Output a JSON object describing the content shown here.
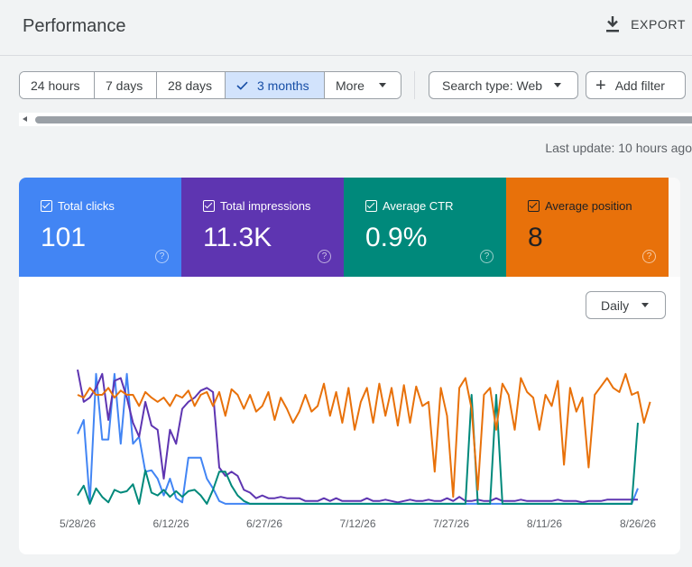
{
  "header": {
    "title": "Performance",
    "export_label": "EXPORT"
  },
  "filters": {
    "date_ranges": [
      {
        "label": "24 hours",
        "selected": false
      },
      {
        "label": "7 days",
        "selected": false
      },
      {
        "label": "28 days",
        "selected": false
      },
      {
        "label": "3 months",
        "selected": true
      },
      {
        "label": "More",
        "selected": false
      }
    ],
    "search_type_label": "Search type: Web",
    "add_filter_label": "Add filter"
  },
  "last_update": "Last update: 10 hours ago",
  "metrics": [
    {
      "label": "Total clicks",
      "value": "101",
      "color": "#4285f4"
    },
    {
      "label": "Total impressions",
      "value": "11.3K",
      "color": "#5e35b1"
    },
    {
      "label": "Average CTR",
      "value": "0.9%",
      "color": "#00897b"
    },
    {
      "label": "Average position",
      "value": "8",
      "color": "#e8710a"
    }
  ],
  "granularity": "Daily",
  "chart_data": {
    "type": "line",
    "x_labels": [
      "5/28/26",
      "6/12/26",
      "6/27/26",
      "7/12/26",
      "7/27/26",
      "8/11/26",
      "8/26/26"
    ],
    "x_start_label_index": 0,
    "points_per_label": 15,
    "series": [
      {
        "name": "Total clicks",
        "color": "#4285f4",
        "values": [
          0.52,
          0.62,
          0.03,
          0.95,
          0.48,
          0.48,
          0.95,
          0.45,
          0.95,
          0.45,
          0.5,
          0.25,
          0.26,
          0.2,
          0.08,
          0.2,
          0.06,
          0.03,
          0.35,
          0.35,
          0.35,
          0.2,
          0.13,
          0.04,
          0.02,
          0.02,
          0.02,
          0.02,
          0.02,
          0.02,
          0.02,
          0.02,
          0.02,
          0.02,
          0.02,
          0.02,
          0.02,
          0.02,
          0.02,
          0.02,
          0.02,
          0.02,
          0.02,
          0.02,
          0.02,
          0.02,
          0.02,
          0.02,
          0.02,
          0.02,
          0.02,
          0.02,
          0.02,
          0.02,
          0.02,
          0.02,
          0.02,
          0.02,
          0.02,
          0.02,
          0.02,
          0.02,
          0.02,
          0.02,
          0.02,
          0.02,
          0.02,
          0.02,
          0.02,
          0.02,
          0.02,
          0.02,
          0.02,
          0.02,
          0.02,
          0.02,
          0.02,
          0.02,
          0.02,
          0.02,
          0.02,
          0.02,
          0.02,
          0.02,
          0.02,
          0.02,
          0.02,
          0.02,
          0.02,
          0.02,
          0.02,
          0.13
        ]
      },
      {
        "name": "Total impressions",
        "color": "#5e35b1",
        "values": [
          0.98,
          0.75,
          0.78,
          0.85,
          0.95,
          0.62,
          0.9,
          0.92,
          0.78,
          0.6,
          0.5,
          0.75,
          0.58,
          0.55,
          0.2,
          0.55,
          0.45,
          0.7,
          0.75,
          0.78,
          0.83,
          0.85,
          0.82,
          0.28,
          0.22,
          0.25,
          0.22,
          0.12,
          0.1,
          0.06,
          0.08,
          0.06,
          0.06,
          0.07,
          0.06,
          0.06,
          0.06,
          0.04,
          0.04,
          0.04,
          0.06,
          0.04,
          0.06,
          0.04,
          0.04,
          0.04,
          0.04,
          0.06,
          0.04,
          0.04,
          0.05,
          0.04,
          0.03,
          0.04,
          0.05,
          0.04,
          0.04,
          0.05,
          0.04,
          0.04,
          0.06,
          0.04,
          0.07,
          0.04,
          0.04,
          0.05,
          0.04,
          0.04,
          0.06,
          0.04,
          0.04,
          0.04,
          0.05,
          0.04,
          0.04,
          0.04,
          0.04,
          0.04,
          0.05,
          0.04,
          0.04,
          0.04,
          0.03,
          0.04,
          0.04,
          0.04,
          0.05,
          0.05,
          0.05,
          0.05,
          0.05,
          0.05
        ]
      },
      {
        "name": "Average CTR",
        "color": "#00897b",
        "values": [
          0.08,
          0.15,
          0.02,
          0.13,
          0.07,
          0.03,
          0.12,
          0.1,
          0.11,
          0.16,
          0.02,
          0.26,
          0.1,
          0.08,
          0.12,
          0.07,
          0.11,
          0.07,
          0.11,
          0.12,
          0.08,
          0.02,
          0.12,
          0.25,
          0.25,
          0.15,
          0.08,
          0.04,
          0.02,
          0.02,
          0.02,
          0.02,
          0.02,
          0.02,
          0.02,
          0.02,
          0.02,
          0.02,
          0.02,
          0.02,
          0.02,
          0.02,
          0.02,
          0.02,
          0.02,
          0.02,
          0.02,
          0.02,
          0.02,
          0.02,
          0.02,
          0.02,
          0.02,
          0.02,
          0.02,
          0.02,
          0.02,
          0.02,
          0.02,
          0.02,
          0.02,
          0.02,
          0.02,
          0.02,
          0.8,
          0.02,
          0.02,
          0.02,
          0.8,
          0.02,
          0.02,
          0.02,
          0.02,
          0.02,
          0.02,
          0.02,
          0.02,
          0.02,
          0.02,
          0.02,
          0.02,
          0.02,
          0.02,
          0.02,
          0.02,
          0.02,
          0.02,
          0.02,
          0.02,
          0.02,
          0.02,
          0.6
        ]
      },
      {
        "name": "Average position",
        "color": "#e8710a",
        "values": [
          0.8,
          0.78,
          0.85,
          0.8,
          0.8,
          0.85,
          0.78,
          0.83,
          0.8,
          0.8,
          0.72,
          0.82,
          0.78,
          0.75,
          0.78,
          0.72,
          0.8,
          0.78,
          0.83,
          0.72,
          0.8,
          0.82,
          0.72,
          0.82,
          0.65,
          0.84,
          0.8,
          0.7,
          0.8,
          0.68,
          0.72,
          0.82,
          0.62,
          0.78,
          0.7,
          0.6,
          0.68,
          0.8,
          0.68,
          0.72,
          0.88,
          0.65,
          0.82,
          0.6,
          0.85,
          0.55,
          0.75,
          0.85,
          0.6,
          0.88,
          0.65,
          0.85,
          0.58,
          0.87,
          0.6,
          0.86,
          0.72,
          0.75,
          0.25,
          0.85,
          0.65,
          0.07,
          0.85,
          0.92,
          0.7,
          0.12,
          0.8,
          0.85,
          0.55,
          0.88,
          0.8,
          0.55,
          0.92,
          0.82,
          0.78,
          0.55,
          0.8,
          0.72,
          0.9,
          0.3,
          0.85,
          0.68,
          0.78,
          0.28,
          0.8,
          0.86,
          0.92,
          0.85,
          0.82,
          0.95,
          0.8,
          0.82,
          0.6,
          0.75
        ]
      }
    ]
  }
}
